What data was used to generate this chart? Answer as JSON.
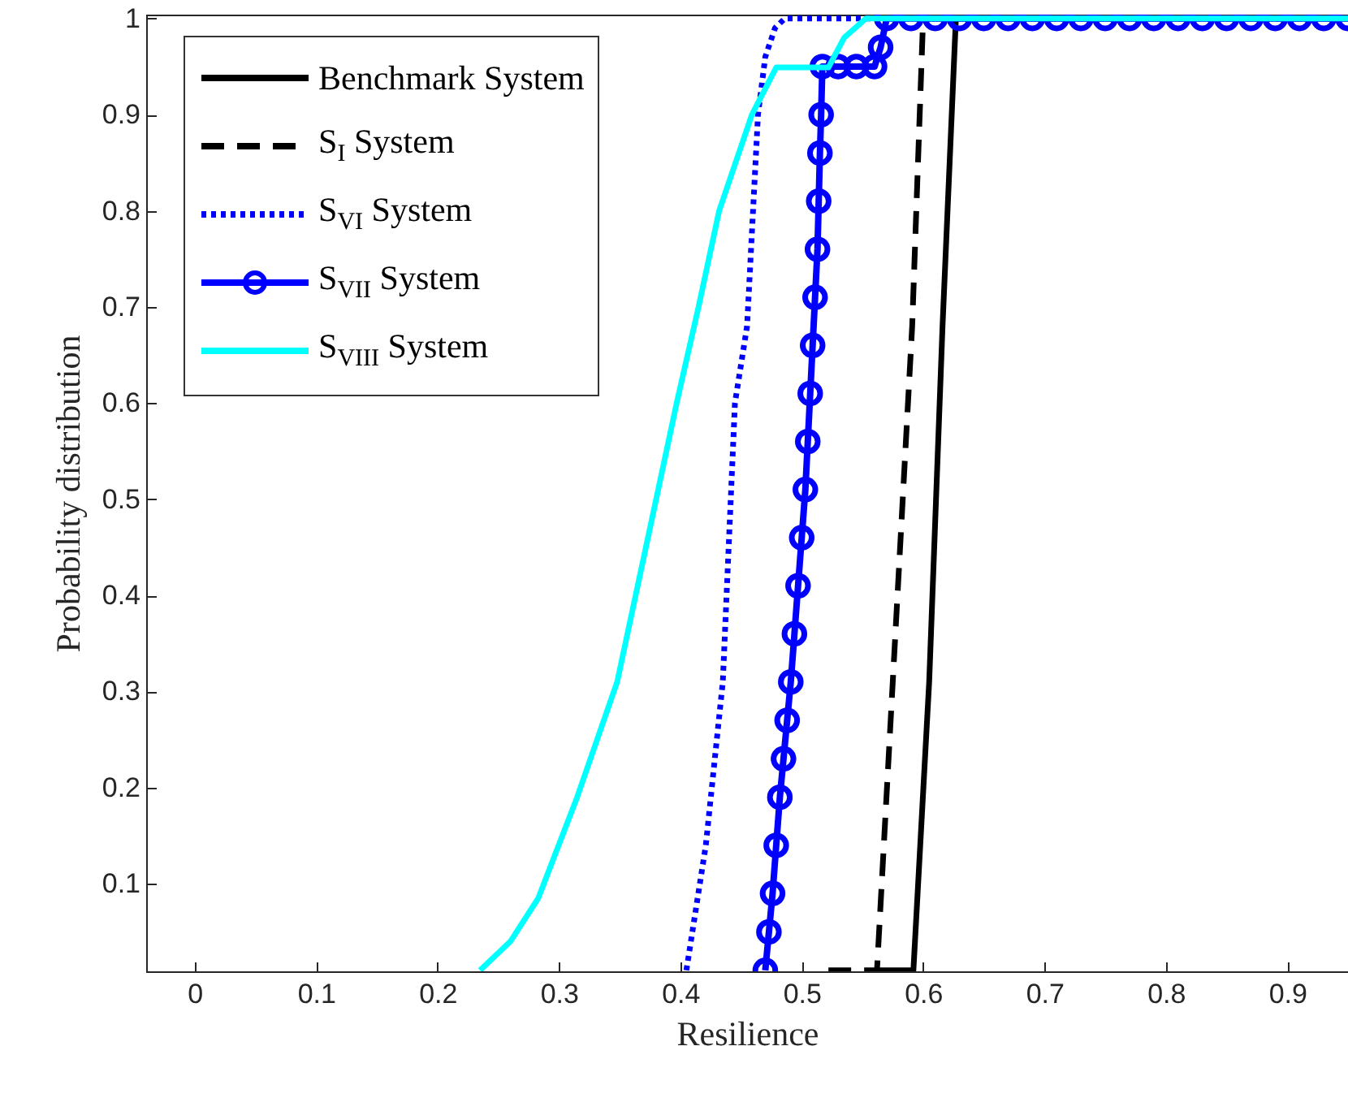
{
  "chart_data": {
    "type": "line",
    "xlabel": "Resilience",
    "ylabel": "Probability distribution",
    "xlim": [
      -0.04,
      0.95
    ],
    "ylim": [
      0.009,
      1.004
    ],
    "xticks": [
      0,
      0.1,
      0.2,
      0.3,
      0.4,
      0.5,
      0.6,
      0.7,
      0.8,
      0.9
    ],
    "yticks": [
      0.1,
      0.2,
      0.3,
      0.4,
      0.5,
      0.6,
      0.7,
      0.8,
      0.9,
      1
    ],
    "grid": false,
    "legend": "top left",
    "series": [
      {
        "name": "Benchmark System",
        "color": "#000000",
        "line_style": "solid",
        "marker": "none",
        "x": [
          0.56,
          0.592,
          0.605,
          0.616,
          0.627,
          0.95
        ],
        "values": [
          0.01,
          0.01,
          0.31,
          0.68,
          1,
          1
        ]
      },
      {
        "name": "S$_{I}$ System",
        "color": "#000000",
        "line_style": "dashed",
        "marker": "none",
        "x": [
          0.522,
          0.562,
          0.575,
          0.591,
          0.6,
          0.95
        ],
        "values": [
          0.01,
          0.01,
          0.31,
          0.68,
          1,
          1
        ]
      },
      {
        "name": "S$_{VI}$ System",
        "color": "#0000ff",
        "line_style": "dotted",
        "marker": "none",
        "x": [
          0.405,
          0.421,
          0.435,
          0.445,
          0.455,
          0.464,
          0.47,
          0.478,
          0.486,
          0.95
        ],
        "values": [
          0.01,
          0.14,
          0.31,
          0.6,
          0.68,
          0.9,
          0.96,
          0.99,
          1,
          1
        ]
      },
      {
        "name": "S$_{VII}$ System",
        "color": "#0000ff",
        "line_style": "solid",
        "marker": "circle",
        "x": [
          0.47,
          0.473,
          0.476,
          0.479,
          0.482,
          0.485,
          0.488,
          0.491,
          0.494,
          0.497,
          0.5,
          0.503,
          0.505,
          0.507,
          0.509,
          0.511,
          0.513,
          0.514,
          0.515,
          0.516,
          0.517,
          0.53,
          0.545,
          0.56,
          0.565,
          0.57,
          0.59,
          0.61,
          0.63,
          0.65,
          0.67,
          0.69,
          0.71,
          0.73,
          0.75,
          0.77,
          0.79,
          0.81,
          0.83,
          0.85,
          0.87,
          0.89,
          0.91,
          0.93,
          0.95
        ],
        "values": [
          0.01,
          0.05,
          0.09,
          0.14,
          0.19,
          0.23,
          0.27,
          0.31,
          0.36,
          0.41,
          0.46,
          0.51,
          0.56,
          0.61,
          0.66,
          0.71,
          0.76,
          0.81,
          0.86,
          0.9,
          0.95,
          0.95,
          0.95,
          0.95,
          0.97,
          1,
          1,
          1,
          1,
          1,
          1,
          1,
          1,
          1,
          1,
          1,
          1,
          1,
          1,
          1,
          1,
          1,
          1,
          1,
          1
        ]
      },
      {
        "name": "S$_{VIII}$ System",
        "color": "#00ffff",
        "line_style": "solid",
        "marker": "none",
        "x": [
          0.235,
          0.26,
          0.283,
          0.315,
          0.348,
          0.397,
          0.415,
          0.432,
          0.459,
          0.479,
          0.522,
          0.535,
          0.553,
          0.95
        ],
        "values": [
          0.01,
          0.04,
          0.085,
          0.19,
          0.31,
          0.6,
          0.7,
          0.8,
          0.9,
          0.949,
          0.949,
          0.98,
          1,
          1
        ]
      }
    ]
  }
}
